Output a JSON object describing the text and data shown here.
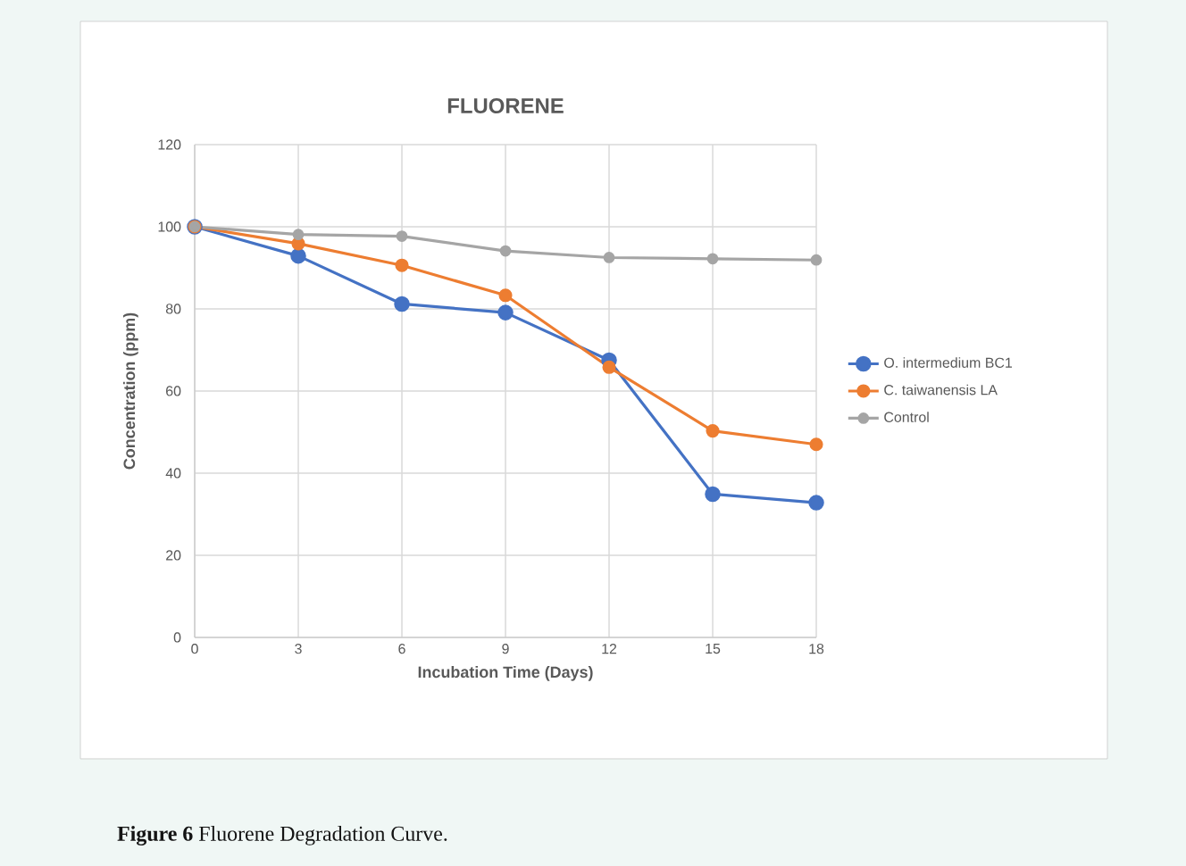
{
  "chart_data": {
    "type": "line",
    "title": "FLUORENE",
    "xlabel": "Incubation Time (Days)",
    "ylabel": "Concentration (ppm)",
    "x": [
      0,
      3,
      6,
      9,
      12,
      15,
      18
    ],
    "series": [
      {
        "name": "O. intermedium BC1",
        "color": "#4472c4",
        "values": [
          100,
          92.9,
          81.2,
          79.1,
          67.5,
          34.9,
          32.8
        ]
      },
      {
        "name": "C. taiwanensis LA",
        "color": "#ed7d31",
        "values": [
          100,
          95.9,
          90.6,
          83.3,
          65.8,
          50.3,
          47.0
        ]
      },
      {
        "name": "Control",
        "color": "#a5a5a5",
        "values": [
          100,
          98.1,
          97.7,
          94.1,
          92.5,
          92.2,
          91.9
        ]
      }
    ],
    "xlim": [
      0,
      18
    ],
    "ylim": [
      0,
      120
    ],
    "xticks": [
      0,
      3,
      6,
      9,
      12,
      15,
      18
    ],
    "yticks": [
      0,
      20,
      40,
      60,
      80,
      100,
      120
    ],
    "grid": true,
    "legend": "right",
    "marker": "circle",
    "line_style": "solid",
    "annotations": [
      "**Figure 6** Fluorene Degradation Curve."
    ]
  }
}
